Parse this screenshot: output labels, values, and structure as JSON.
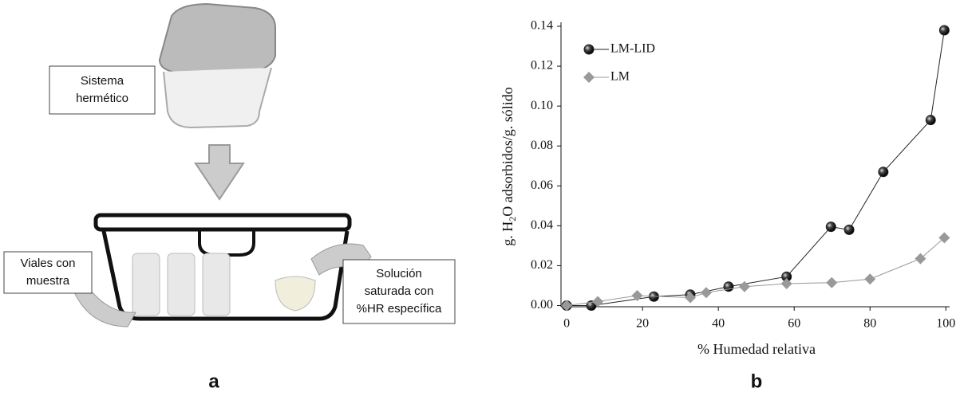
{
  "diagram": {
    "box_top_label": [
      "Sistema",
      "hermético"
    ],
    "vials_label": [
      "Viales con",
      "muestra"
    ],
    "solution_label": [
      "Solución",
      "saturada con",
      "%HR específica"
    ],
    "panel_label": "a"
  },
  "chart_data": {
    "type": "line",
    "panel_label": "b",
    "x_label": "% Humedad relativa",
    "y_label": [
      "g. H",
      "2",
      "O adsorbidos/g. sólido"
    ],
    "xlim": [
      -1.5,
      101
    ],
    "ylim": [
      -0.0006,
      0.14
    ],
    "xticks": [
      0,
      20,
      40,
      60,
      80,
      100
    ],
    "yticks": [
      {
        "value": 0,
        "label": "0.00"
      },
      0.02,
      0.04,
      0.06,
      0.08,
      {
        "value": 0.1,
        "label": "0.10"
      },
      0.12,
      0.14
    ],
    "legend": "upper left",
    "series": [
      {
        "name": "LM-LID",
        "color": "#222222",
        "marker": "circle",
        "x": [
          0,
          6.5,
          23,
          32.6,
          42.7,
          58,
          69.7,
          74.5,
          83.5,
          96,
          99.6
        ],
        "values": [
          0,
          0,
          0.0045,
          0.0055,
          0.0095,
          0.0145,
          0.0395,
          0.038,
          0.067,
          0.093,
          0.138
        ]
      },
      {
        "name": "LM",
        "color": "#999999",
        "marker": "diamond",
        "x": [
          0,
          8.2,
          18.6,
          32.6,
          36.8,
          46.9,
          58,
          69.9,
          80,
          93.3,
          99.6
        ],
        "values": [
          0,
          0.002,
          0.005,
          0.004,
          0.0065,
          0.0095,
          0.011,
          0.0115,
          0.0133,
          0.0235,
          0.034
        ]
      }
    ]
  }
}
